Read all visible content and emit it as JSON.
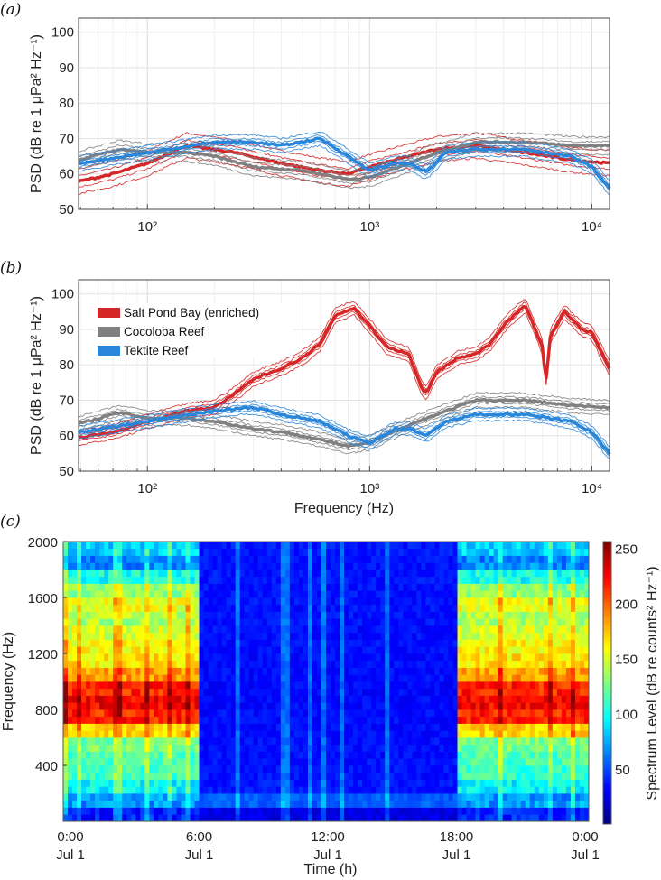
{
  "chart_data": [
    {
      "panel_label": "(a)",
      "type": "line",
      "xscale": "log",
      "xlim": [
        49,
        12000
      ],
      "ylim": [
        50,
        104
      ],
      "xticks": [
        100,
        1000,
        10000
      ],
      "xtick_labels": [
        "10²",
        "10³",
        "10⁴"
      ],
      "yticks": [
        50,
        60,
        70,
        80,
        90,
        100
      ],
      "ylabel": "PSD (dB re 1 μPa² Hz⁻¹)",
      "xlabel": "",
      "grid": true,
      "series": [
        {
          "name": "Salt Pond Bay",
          "color": "#d62728",
          "spread": 3.5,
          "x": [
            50,
            70,
            100,
            150,
            250,
            400,
            600,
            800,
            1000,
            1500,
            2000,
            3000,
            5000,
            8000,
            12000
          ],
          "y": [
            58,
            60,
            63,
            68,
            66,
            63,
            61,
            60,
            62,
            65,
            67,
            68,
            66,
            64,
            63
          ]
        },
        {
          "name": "Cocoloba Reef",
          "color": "#808080",
          "spread": 2.5,
          "x": [
            50,
            75,
            100,
            150,
            200,
            300,
            500,
            800,
            1000,
            1500,
            2000,
            3000,
            5000,
            8000,
            12000
          ],
          "y": [
            64,
            67,
            66,
            66,
            65,
            62,
            61,
            58.5,
            59,
            63,
            66,
            69,
            69,
            68,
            68
          ]
        },
        {
          "name": "Tektite Reef",
          "color": "#2a86d8",
          "spread": 2,
          "x": [
            50,
            100,
            200,
            300,
            400,
            600,
            800,
            1000,
            1300,
            1500,
            1800,
            2200,
            3000,
            5000,
            8000,
            10000,
            12000
          ],
          "y": [
            63,
            66,
            69,
            69,
            68,
            70,
            65,
            61,
            63,
            63,
            60.5,
            66,
            67,
            67,
            65,
            62,
            56
          ]
        }
      ]
    },
    {
      "panel_label": "(b)",
      "type": "line",
      "xscale": "log",
      "xlim": [
        49,
        12000
      ],
      "ylim": [
        50,
        104
      ],
      "xticks": [
        100,
        1000,
        10000
      ],
      "xtick_labels": [
        "10²",
        "10³",
        "10⁴"
      ],
      "yticks": [
        50,
        60,
        70,
        80,
        90,
        100
      ],
      "ylabel": "PSD (dB re 1 μPa² Hz⁻¹)",
      "xlabel": "Frequency (Hz)",
      "grid": true,
      "legend": {
        "placement": "top-left",
        "entries": [
          "Salt Pond Bay (enriched)",
          "Cocoloba Reef",
          "Tektite Reef"
        ]
      },
      "series": [
        {
          "name": "Salt Pond Bay (enriched)",
          "color": "#d62728",
          "spread": 2,
          "x": [
            50,
            70,
            100,
            150,
            200,
            250,
            300,
            400,
            500,
            600,
            700,
            850,
            1000,
            1200,
            1500,
            1700,
            1800,
            2000,
            2500,
            3000,
            3500,
            4000,
            5000,
            6000,
            6200,
            6500,
            7500,
            9000,
            10000,
            12000
          ],
          "y": [
            59.5,
            61,
            64,
            67,
            68,
            72,
            76,
            79,
            82,
            86,
            94,
            96,
            91,
            85,
            83,
            74,
            72,
            78,
            82,
            83,
            86,
            91,
            97,
            85,
            75,
            88,
            95,
            90,
            89,
            79
          ]
        },
        {
          "name": "Cocoloba Reef",
          "color": "#808080",
          "spread": 2,
          "x": [
            50,
            75,
            100,
            150,
            200,
            300,
            400,
            500,
            800,
            1000,
            1500,
            2000,
            3000,
            5000,
            8000,
            12000
          ],
          "y": [
            63.5,
            66.5,
            65,
            65,
            64,
            62,
            61,
            60,
            57,
            58,
            63,
            66,
            70,
            70,
            68.5,
            68
          ]
        },
        {
          "name": "Tektite Reef",
          "color": "#2a86d8",
          "spread": 1.8,
          "x": [
            50,
            100,
            200,
            300,
            400,
            600,
            800,
            1000,
            1300,
            1500,
            1800,
            2200,
            3000,
            5000,
            8000,
            10000,
            12000
          ],
          "y": [
            61,
            64,
            67,
            68,
            66,
            64,
            60,
            58,
            62,
            62,
            60,
            64,
            66,
            66,
            64,
            61,
            55
          ]
        }
      ]
    },
    {
      "panel_label": "(c)",
      "type": "heatmap",
      "xlabel": "Time (h)",
      "ylabel": "Frequency (Hz)",
      "xlim_hours": [
        0,
        24
      ],
      "ylim": [
        0,
        2000
      ],
      "xticks_hours": [
        0,
        6,
        12,
        18,
        24
      ],
      "xtick_labels": [
        [
          "0:00",
          "Jul 1"
        ],
        [
          "6:00",
          "Jul 1"
        ],
        [
          "12:00",
          "Jul 1"
        ],
        [
          "18:00",
          "Jul 1"
        ],
        [
          "0:00",
          "Jul 1"
        ]
      ],
      "yticks": [
        400,
        800,
        1200,
        1600,
        2000
      ],
      "colorbar": {
        "label": "Spectrum Level (dB re counts² Hz⁻¹)",
        "range": [
          0,
          256
        ],
        "ticks": [
          50,
          100,
          150,
          200,
          250
        ],
        "colormap": "jet"
      },
      "frequency_bins_hz": [
        50,
        150,
        250,
        350,
        450,
        550,
        650,
        750,
        850,
        950,
        1050,
        1150,
        1250,
        1350,
        1450,
        1550,
        1650,
        1750,
        1850,
        1950
      ],
      "active_profile": [
        40,
        70,
        95,
        110,
        115,
        125,
        170,
        215,
        225,
        215,
        185,
        165,
        160,
        150,
        140,
        155,
        130,
        100,
        65,
        85
      ],
      "quiet_profile": [
        25,
        55,
        38,
        36,
        35,
        35,
        34,
        34,
        33,
        33,
        34,
        34,
        35,
        35,
        36,
        36,
        36,
        37,
        36,
        38
      ],
      "active_periods_hours": [
        [
          0,
          6.3
        ],
        [
          18,
          24
        ]
      ]
    }
  ]
}
